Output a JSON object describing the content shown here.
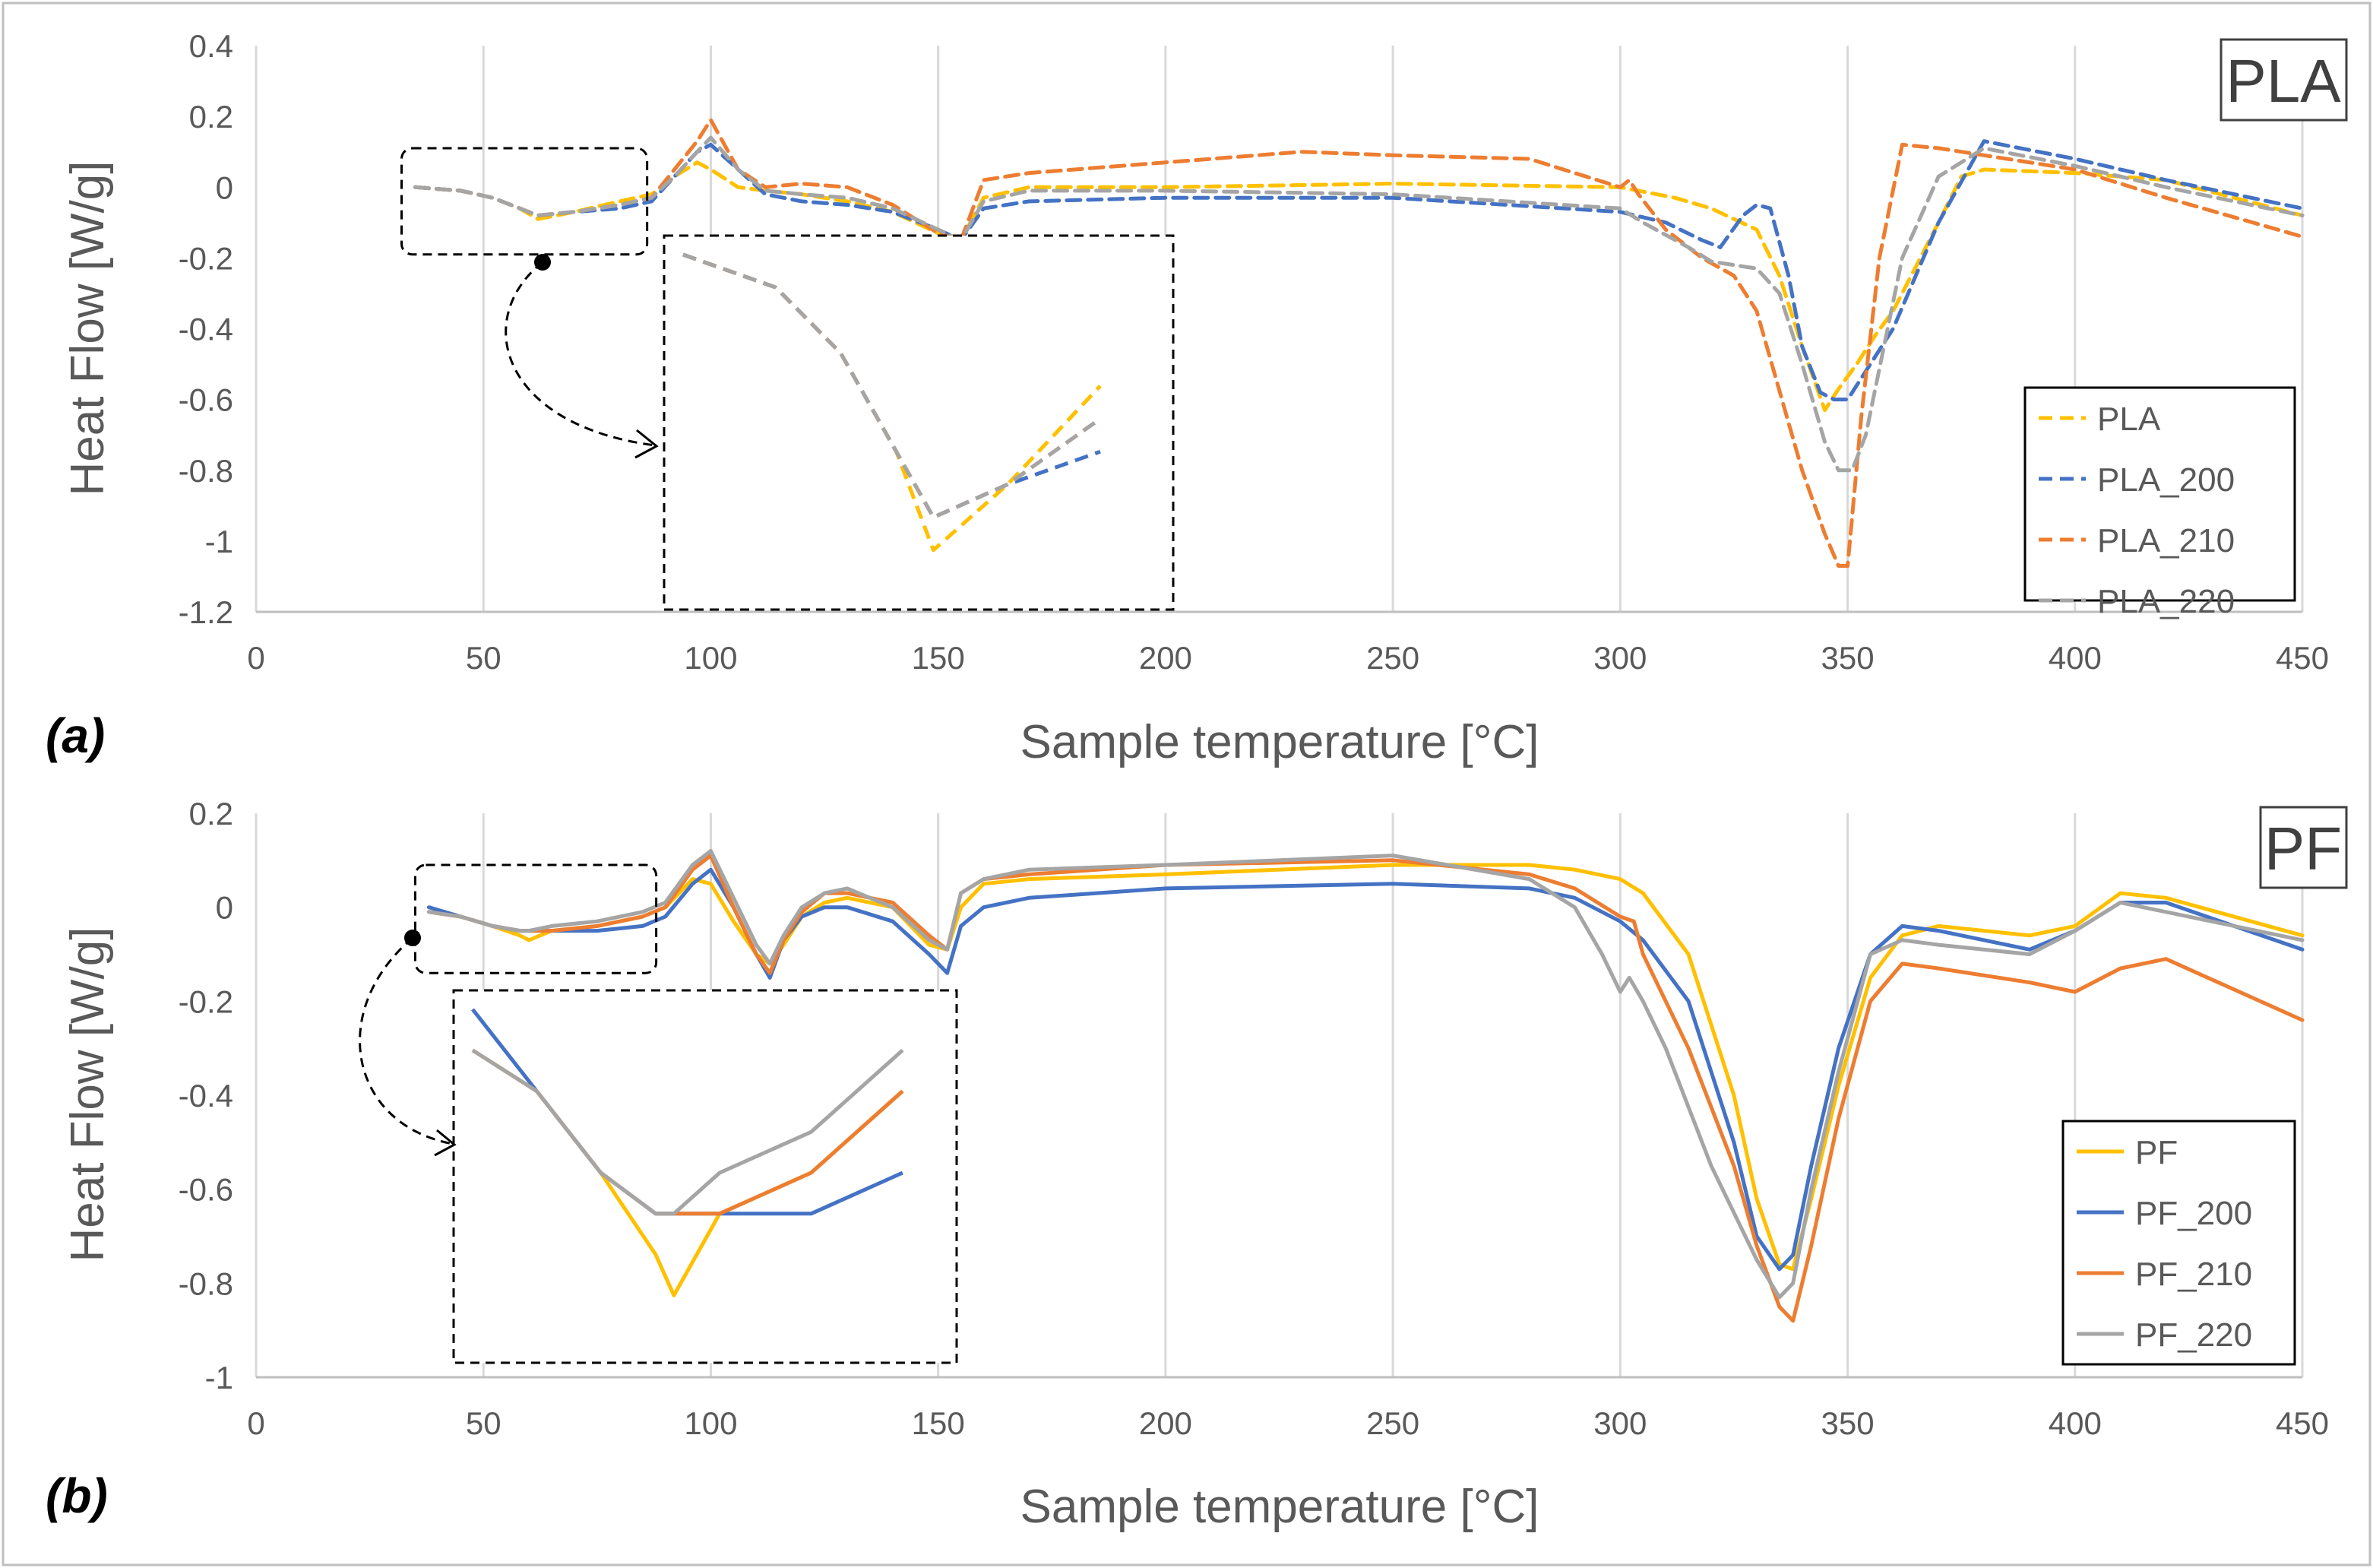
{
  "figure": {
    "panels": [
      "(a)",
      "(b)"
    ]
  },
  "colors": {
    "yellow": "#FFC000",
    "blue": "#4472C4",
    "orange": "#ED7D31",
    "gray": "#A5A5A5",
    "axis_text": "#595959",
    "grid": "#D9D9D9"
  },
  "chart_data": [
    {
      "type": "line",
      "panel_label": "(a)",
      "title": "PLA",
      "xlabel": "Sample temperature [°C]",
      "ylabel": "Heat Flow [W/g]",
      "xlim": [
        0,
        450
      ],
      "ylim": [
        -1.2,
        0.4
      ],
      "xticks": [
        0,
        50,
        100,
        150,
        200,
        250,
        300,
        350,
        400,
        450
      ],
      "yticks": [
        0.4,
        0.2,
        0,
        -0.2,
        -0.4,
        -0.6,
        -0.8,
        -1,
        -1.2
      ],
      "ytick_labels": [
        "0.4",
        "0.2",
        "0",
        "-0.2",
        "-0.4",
        "-0.6",
        "-0.8",
        "-1",
        "-1.2"
      ],
      "line_style": "dashed",
      "grid": "vertical",
      "legend_position": "bottom-right",
      "inset": "zoom of 35–85 °C region",
      "series": [
        {
          "name": "PLA",
          "color": "#FFC000",
          "x": [
            35,
            45,
            52,
            58,
            62,
            70,
            80,
            87,
            92,
            97,
            100,
            106,
            112,
            120,
            130,
            140,
            150,
            155,
            160,
            170,
            200,
            250,
            300,
            312,
            320,
            325,
            330,
            335,
            340,
            345,
            348,
            352,
            356,
            360,
            370,
            375,
            380,
            400,
            420,
            450
          ],
          "y": [
            0,
            -0.01,
            -0.03,
            -0.06,
            -0.09,
            -0.07,
            -0.04,
            -0.02,
            0.03,
            0.07,
            0.05,
            0.0,
            -0.01,
            -0.02,
            -0.04,
            -0.07,
            -0.13,
            -0.15,
            -0.03,
            0.0,
            0.0,
            0.01,
            0.0,
            -0.03,
            -0.06,
            -0.09,
            -0.12,
            -0.25,
            -0.45,
            -0.63,
            -0.57,
            -0.5,
            -0.42,
            -0.35,
            -0.1,
            0.03,
            0.05,
            0.04,
            0.02,
            -0.08
          ]
        },
        {
          "name": "PLA_200",
          "color": "#4472C4",
          "x": [
            35,
            45,
            52,
            58,
            62,
            70,
            80,
            87,
            92,
            97,
            100,
            106,
            112,
            120,
            130,
            140,
            150,
            155,
            160,
            170,
            200,
            250,
            300,
            310,
            318,
            322,
            327,
            330,
            333,
            337,
            340,
            344,
            347,
            350,
            355,
            360,
            370,
            380,
            400,
            420,
            450
          ],
          "y": [
            0,
            -0.01,
            -0.03,
            -0.06,
            -0.08,
            -0.07,
            -0.06,
            -0.04,
            0.03,
            0.1,
            0.12,
            0.05,
            -0.02,
            -0.04,
            -0.05,
            -0.07,
            -0.12,
            -0.15,
            -0.06,
            -0.04,
            -0.03,
            -0.03,
            -0.07,
            -0.1,
            -0.15,
            -0.17,
            -0.08,
            -0.05,
            -0.06,
            -0.25,
            -0.45,
            -0.58,
            -0.6,
            -0.6,
            -0.5,
            -0.4,
            -0.1,
            0.13,
            0.08,
            0.02,
            -0.06
          ]
        },
        {
          "name": "PLA_210",
          "color": "#ED7D31",
          "x": [
            35,
            45,
            52,
            58,
            62,
            70,
            80,
            87,
            92,
            97,
            100,
            106,
            112,
            120,
            130,
            140,
            150,
            155,
            160,
            170,
            200,
            230,
            250,
            280,
            300,
            302,
            304,
            310,
            318,
            325,
            330,
            340,
            345,
            348,
            350,
            353,
            357,
            362,
            370,
            380,
            400,
            420,
            450
          ],
          "y": [
            0,
            -0.01,
            -0.03,
            -0.06,
            -0.08,
            -0.07,
            -0.05,
            -0.03,
            0.05,
            0.13,
            0.19,
            0.05,
            0.0,
            0.01,
            0.0,
            -0.05,
            -0.13,
            -0.15,
            0.02,
            0.04,
            0.07,
            0.1,
            0.09,
            0.08,
            0.0,
            0.02,
            -0.02,
            -0.12,
            -0.2,
            -0.25,
            -0.35,
            -0.8,
            -0.98,
            -1.07,
            -1.07,
            -0.65,
            -0.2,
            0.12,
            0.11,
            0.09,
            0.05,
            -0.03,
            -0.14
          ]
        },
        {
          "name": "PLA_220",
          "color": "#A5A5A5",
          "x": [
            35,
            45,
            52,
            58,
            62,
            70,
            80,
            87,
            92,
            97,
            100,
            106,
            112,
            120,
            130,
            140,
            150,
            155,
            160,
            170,
            200,
            250,
            300,
            305,
            315,
            320,
            325,
            330,
            335,
            340,
            345,
            348,
            351,
            354,
            358,
            362,
            370,
            380,
            400,
            420,
            450
          ],
          "y": [
            0,
            -0.01,
            -0.03,
            -0.06,
            -0.08,
            -0.07,
            -0.05,
            -0.03,
            0.03,
            0.1,
            0.14,
            0.05,
            -0.01,
            -0.02,
            -0.03,
            -0.06,
            -0.12,
            -0.15,
            -0.04,
            -0.01,
            -0.01,
            -0.02,
            -0.06,
            -0.1,
            -0.17,
            -0.21,
            -0.22,
            -0.23,
            -0.3,
            -0.5,
            -0.72,
            -0.8,
            -0.8,
            -0.7,
            -0.45,
            -0.2,
            0.03,
            0.11,
            0.06,
            0.0,
            -0.08
          ]
        }
      ],
      "legend": [
        "PLA",
        "PLA_200",
        "PLA_210",
        "PLA_220"
      ]
    },
    {
      "type": "line",
      "panel_label": "(b)",
      "title": "PF",
      "xlabel": "Sample temperature [°C]",
      "ylabel": "Heat Flow [W/g]",
      "xlim": [
        0,
        450
      ],
      "ylim": [
        -1,
        0.2
      ],
      "xticks": [
        0,
        50,
        100,
        150,
        200,
        250,
        300,
        350,
        400,
        450
      ],
      "yticks": [
        0.2,
        0,
        -0.2,
        -0.4,
        -0.6,
        -0.8,
        -1
      ],
      "ytick_labels": [
        "0.2",
        "0",
        "-0.2",
        "-0.4",
        "-0.6",
        "-0.8",
        "-1"
      ],
      "line_style": "solid",
      "grid": "vertical",
      "legend_position": "bottom-right",
      "inset": "zoom of 40–90 °C region",
      "series": [
        {
          "name": "PF",
          "color": "#FFC000",
          "x": [
            38,
            45,
            52,
            58,
            60,
            65,
            75,
            85,
            90,
            96,
            100,
            105,
            110,
            113,
            116,
            120,
            125,
            130,
            140,
            148,
            152,
            155,
            160,
            170,
            200,
            250,
            280,
            290,
            300,
            305,
            315,
            325,
            330,
            335,
            338,
            342,
            348,
            355,
            362,
            370,
            390,
            400,
            410,
            420,
            450
          ],
          "y": [
            -0.01,
            -0.02,
            -0.04,
            -0.06,
            -0.07,
            -0.05,
            -0.04,
            -0.02,
            0.0,
            0.06,
            0.05,
            -0.03,
            -0.1,
            -0.12,
            -0.08,
            -0.02,
            0.01,
            0.02,
            0.0,
            -0.08,
            -0.09,
            0.0,
            0.05,
            0.06,
            0.07,
            0.09,
            0.09,
            0.08,
            0.06,
            0.03,
            -0.1,
            -0.4,
            -0.62,
            -0.76,
            -0.77,
            -0.62,
            -0.38,
            -0.15,
            -0.06,
            -0.04,
            -0.06,
            -0.04,
            0.03,
            0.02,
            -0.06
          ]
        },
        {
          "name": "PF_200",
          "color": "#4472C4",
          "x": [
            38,
            45,
            52,
            58,
            60,
            65,
            75,
            85,
            90,
            96,
            100,
            105,
            110,
            113,
            116,
            120,
            125,
            130,
            140,
            148,
            152,
            155,
            160,
            170,
            200,
            250,
            280,
            290,
            300,
            305,
            315,
            325,
            330,
            335,
            338,
            342,
            348,
            355,
            362,
            370,
            390,
            400,
            410,
            420,
            450
          ],
          "y": [
            0,
            -0.02,
            -0.04,
            -0.05,
            -0.05,
            -0.05,
            -0.05,
            -0.04,
            -0.02,
            0.05,
            0.08,
            0.0,
            -0.1,
            -0.15,
            -0.07,
            -0.02,
            0.0,
            0.0,
            -0.03,
            -0.1,
            -0.14,
            -0.04,
            0.0,
            0.02,
            0.04,
            0.05,
            0.04,
            0.02,
            -0.03,
            -0.07,
            -0.2,
            -0.5,
            -0.7,
            -0.77,
            -0.74,
            -0.55,
            -0.3,
            -0.1,
            -0.04,
            -0.05,
            -0.09,
            -0.05,
            0.01,
            0.01,
            -0.09
          ]
        },
        {
          "name": "PF_210",
          "color": "#ED7D31",
          "x": [
            38,
            45,
            52,
            58,
            60,
            65,
            75,
            85,
            90,
            96,
            100,
            105,
            110,
            113,
            116,
            120,
            125,
            130,
            140,
            148,
            152,
            155,
            160,
            170,
            200,
            250,
            280,
            290,
            300,
            303,
            305,
            315,
            325,
            330,
            335,
            338,
            342,
            348,
            355,
            362,
            370,
            390,
            400,
            410,
            420,
            450
          ],
          "y": [
            -0.01,
            -0.02,
            -0.04,
            -0.05,
            -0.05,
            -0.05,
            -0.04,
            -0.02,
            0.0,
            0.08,
            0.11,
            0.0,
            -0.1,
            -0.14,
            -0.07,
            -0.01,
            0.03,
            0.03,
            0.01,
            -0.06,
            -0.09,
            0.03,
            0.06,
            0.07,
            0.09,
            0.1,
            0.07,
            0.04,
            -0.02,
            -0.03,
            -0.1,
            -0.3,
            -0.55,
            -0.72,
            -0.85,
            -0.88,
            -0.72,
            -0.45,
            -0.2,
            -0.12,
            -0.13,
            -0.16,
            -0.18,
            -0.13,
            -0.11,
            -0.24
          ]
        },
        {
          "name": "PF_220",
          "color": "#A5A5A5",
          "x": [
            38,
            45,
            52,
            58,
            60,
            65,
            75,
            85,
            90,
            96,
            100,
            105,
            110,
            113,
            116,
            120,
            125,
            130,
            140,
            148,
            152,
            155,
            160,
            170,
            200,
            250,
            280,
            290,
            296,
            300,
            302,
            305,
            310,
            320,
            330,
            335,
            338,
            342,
            348,
            355,
            362,
            370,
            390,
            400,
            410,
            420,
            450
          ],
          "y": [
            -0.01,
            -0.02,
            -0.04,
            -0.05,
            -0.05,
            -0.04,
            -0.03,
            -0.01,
            0.01,
            0.09,
            0.12,
            0.02,
            -0.08,
            -0.12,
            -0.06,
            0.0,
            0.03,
            0.04,
            0.0,
            -0.07,
            -0.09,
            0.03,
            0.06,
            0.08,
            0.09,
            0.11,
            0.06,
            0.0,
            -0.1,
            -0.18,
            -0.15,
            -0.2,
            -0.3,
            -0.55,
            -0.75,
            -0.83,
            -0.8,
            -0.6,
            -0.35,
            -0.1,
            -0.07,
            -0.08,
            -0.1,
            -0.05,
            0.01,
            -0.01,
            -0.07
          ]
        }
      ],
      "legend": [
        "PF",
        "PF_200",
        "PF_210",
        "PF_220"
      ]
    }
  ]
}
